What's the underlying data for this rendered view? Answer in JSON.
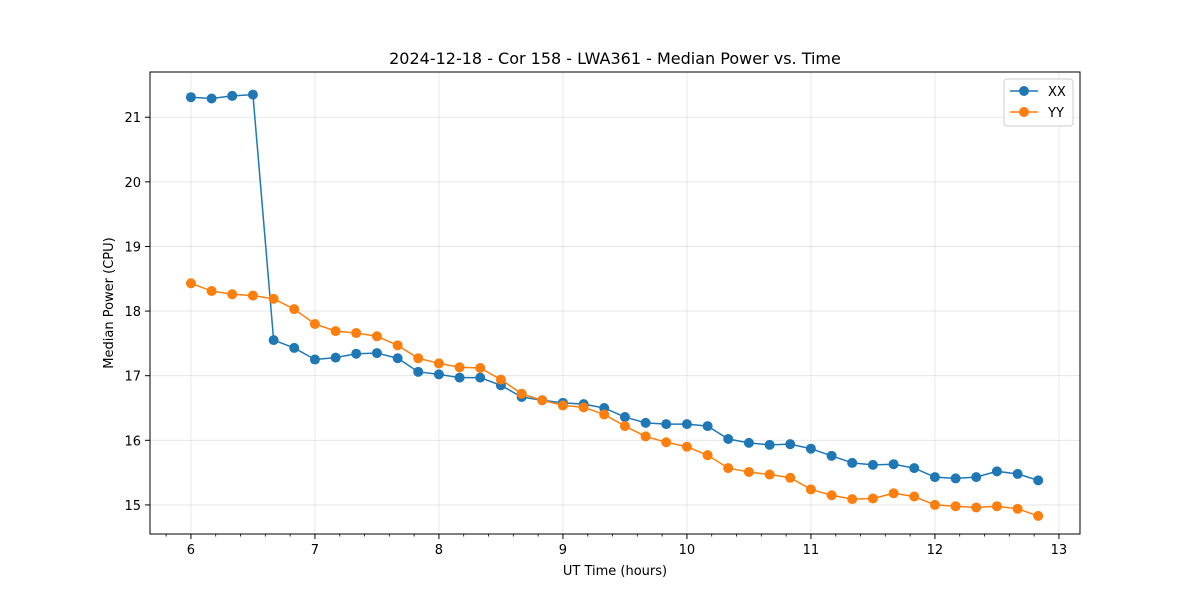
{
  "chart_data": {
    "type": "line",
    "title": "2024-12-18 - Cor 158 - LWA361 - Median Power vs. Time",
    "xlabel": "UT Time (hours)",
    "ylabel": "Median Power (CPU)",
    "xlim": [
      5.67,
      13.17
    ],
    "ylim": [
      14.55,
      21.7
    ],
    "x_ticks": [
      6,
      7,
      8,
      9,
      10,
      11,
      12,
      13
    ],
    "x_minor_step": 0.2,
    "y_ticks": [
      15,
      16,
      17,
      18,
      19,
      20,
      21
    ],
    "grid": true,
    "legend_position": "top-right",
    "x": [
      6.0,
      6.167,
      6.333,
      6.5,
      6.667,
      6.833,
      7.0,
      7.167,
      7.333,
      7.5,
      7.667,
      7.833,
      8.0,
      8.167,
      8.333,
      8.5,
      8.667,
      8.833,
      9.0,
      9.167,
      9.333,
      9.5,
      9.667,
      9.833,
      10.0,
      10.167,
      10.333,
      10.5,
      10.667,
      10.833,
      11.0,
      11.167,
      11.333,
      11.5,
      11.667,
      11.833,
      12.0,
      12.167,
      12.333,
      12.5,
      12.667,
      12.833
    ],
    "series": [
      {
        "name": "XX",
        "color": "#1f77b4",
        "values": [
          21.31,
          21.29,
          21.33,
          21.35,
          17.55,
          17.43,
          17.25,
          17.28,
          17.34,
          17.35,
          17.27,
          17.06,
          17.02,
          16.97,
          16.97,
          16.85,
          16.67,
          16.62,
          16.58,
          16.56,
          16.5,
          16.36,
          16.27,
          16.25,
          16.25,
          16.22,
          16.02,
          15.96,
          15.93,
          15.94,
          15.87,
          15.76,
          15.65,
          15.62,
          15.63,
          15.57,
          15.43,
          15.41,
          15.43,
          15.52,
          15.48,
          15.38
        ]
      },
      {
        "name": "YY",
        "color": "#ff7f0e",
        "values": [
          18.43,
          18.31,
          18.26,
          18.24,
          18.19,
          18.03,
          17.8,
          17.69,
          17.66,
          17.61,
          17.47,
          17.27,
          17.19,
          17.13,
          17.12,
          16.94,
          16.72,
          16.62,
          16.54,
          16.51,
          16.4,
          16.22,
          16.06,
          15.97,
          15.9,
          15.77,
          15.57,
          15.51,
          15.47,
          15.42,
          15.24,
          15.15,
          15.09,
          15.1,
          15.18,
          15.13,
          15.0,
          14.98,
          14.96,
          14.98,
          14.94,
          14.83
        ]
      }
    ]
  }
}
